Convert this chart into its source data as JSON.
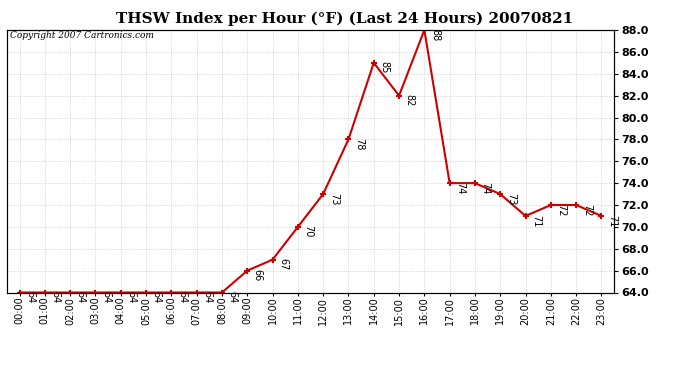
{
  "title": "THSW Index per Hour (°F) (Last 24 Hours) 20070821",
  "copyright": "Copyright 2007 Cartronics.com",
  "hours": [
    "00:00",
    "01:00",
    "02:00",
    "03:00",
    "04:00",
    "05:00",
    "06:00",
    "07:00",
    "08:00",
    "09:00",
    "10:00",
    "11:00",
    "12:00",
    "13:00",
    "14:00",
    "15:00",
    "16:00",
    "17:00",
    "18:00",
    "19:00",
    "20:00",
    "21:00",
    "22:00",
    "23:00"
  ],
  "values": [
    64,
    64,
    64,
    64,
    64,
    64,
    64,
    64,
    64,
    66,
    67,
    70,
    73,
    78,
    85,
    82,
    88,
    74,
    74,
    73,
    71,
    72,
    72,
    71
  ],
  "ylim": [
    64.0,
    88.0
  ],
  "yticks": [
    64.0,
    66.0,
    68.0,
    70.0,
    72.0,
    74.0,
    76.0,
    78.0,
    80.0,
    82.0,
    84.0,
    86.0,
    88.0
  ],
  "line_color": "#cc0000",
  "marker_color": "#cc0000",
  "bg_color": "#ffffff",
  "grid_color": "#bbbbbb",
  "title_fontsize": 11,
  "annotation_fontsize": 7,
  "copyright_fontsize": 6.5,
  "ylabel_fontsize": 8
}
